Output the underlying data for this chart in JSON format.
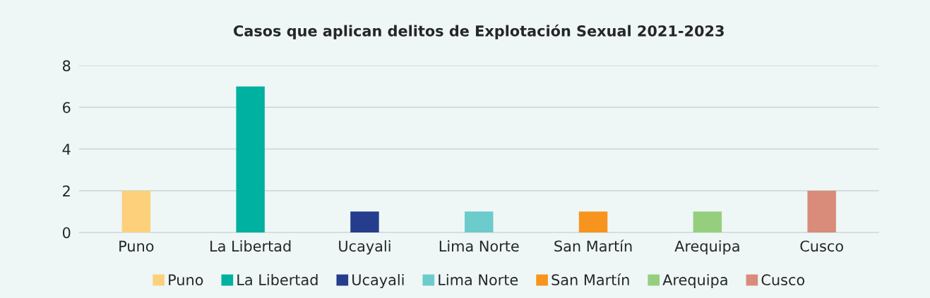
{
  "chart_data": {
    "type": "bar",
    "title": "Casos que aplican delitos de Explotación Sexual 2021-2023",
    "categories": [
      "Puno",
      "La Libertad",
      "Ucayali",
      "Lima Norte",
      "San Martín",
      "Arequipa",
      "Cusco"
    ],
    "series": [
      {
        "name": "Puno",
        "color": "#fdd07c",
        "values": [
          2,
          null,
          null,
          null,
          null,
          null,
          null
        ]
      },
      {
        "name": "La Libertad",
        "color": "#00b0a0",
        "values": [
          null,
          7,
          null,
          null,
          null,
          null,
          null
        ]
      },
      {
        "name": "Ucayali",
        "color": "#253d8c",
        "values": [
          null,
          null,
          1,
          null,
          null,
          null,
          null
        ]
      },
      {
        "name": "Lima Norte",
        "color": "#6ccbcb",
        "values": [
          null,
          null,
          null,
          1,
          null,
          null,
          null
        ]
      },
      {
        "name": "San Martín",
        "color": "#f7941d",
        "values": [
          null,
          null,
          null,
          null,
          1,
          null,
          null
        ]
      },
      {
        "name": "Arequipa",
        "color": "#95cf7e",
        "values": [
          null,
          null,
          null,
          null,
          null,
          1,
          null
        ]
      },
      {
        "name": "Cusco",
        "color": "#d98c7a",
        "values": [
          null,
          null,
          null,
          null,
          null,
          null,
          2
        ]
      }
    ],
    "ylim": [
      0,
      8
    ],
    "yticks": [
      0,
      2,
      4,
      6,
      8
    ],
    "grid": "y",
    "legend": "bottom"
  }
}
